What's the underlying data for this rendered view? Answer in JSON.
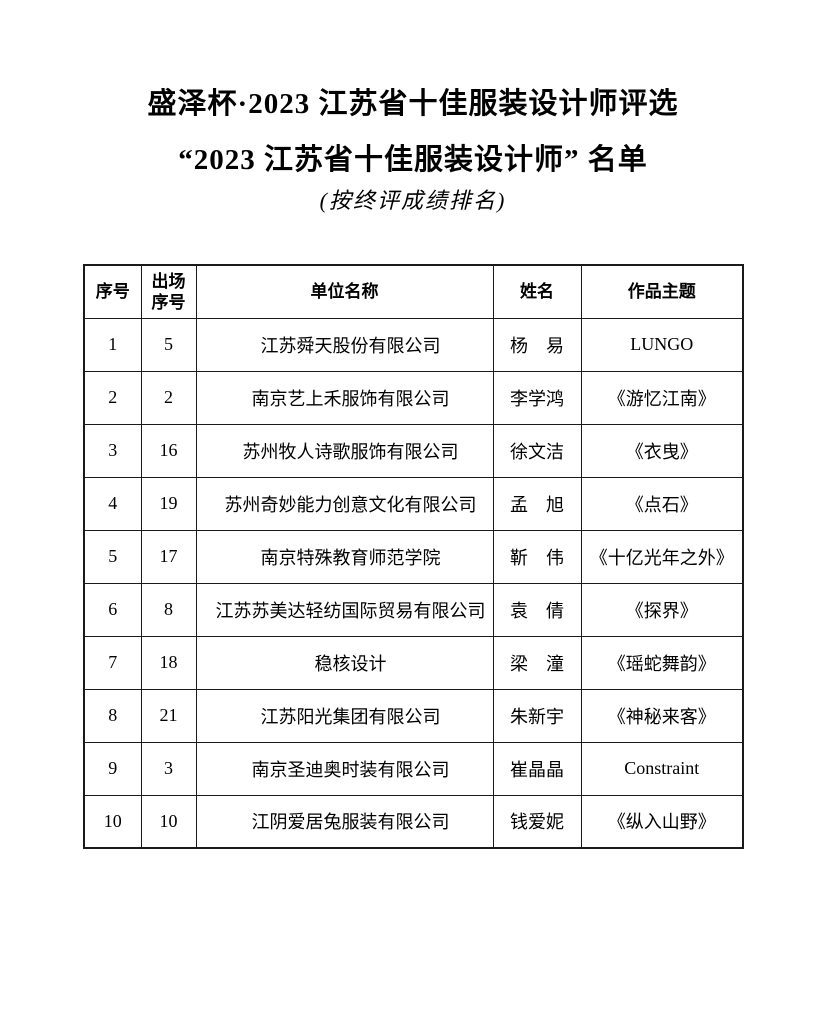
{
  "document": {
    "title_line1": "盛泽杯·2023 江苏省十佳服装设计师评选",
    "title_line2": "“2023 江苏省十佳服装设计师” 名单",
    "subtitle": "(按终评成绩排名)"
  },
  "table": {
    "headers": [
      "序号",
      "出场\n序号",
      "单位名称",
      "姓名",
      "作品主题"
    ],
    "rows": [
      {
        "rank": "1",
        "entry_no": "5",
        "organization": "江苏舜天股份有限公司",
        "designer": "杨　易",
        "work": "LUNGO"
      },
      {
        "rank": "2",
        "entry_no": "2",
        "organization": "南京艺上禾服饰有限公司",
        "designer": "李学鸿",
        "work": "《游忆江南》"
      },
      {
        "rank": "3",
        "entry_no": "16",
        "organization": "苏州牧人诗歌服饰有限公司",
        "designer": "徐文洁",
        "work": "《衣曳》"
      },
      {
        "rank": "4",
        "entry_no": "19",
        "organization": "苏州奇妙能力创意文化有限公司",
        "designer": "孟　旭",
        "work": "《点石》"
      },
      {
        "rank": "5",
        "entry_no": "17",
        "organization": "南京特殊教育师范学院",
        "designer": "靳　伟",
        "work": "《十亿光年之外》"
      },
      {
        "rank": "6",
        "entry_no": "8",
        "organization": "江苏苏美达轻纺国际贸易有限公司",
        "designer": "袁　倩",
        "work": "《探界》"
      },
      {
        "rank": "7",
        "entry_no": "18",
        "organization": "稳核设计",
        "designer": "梁　潼",
        "work": "《瑶蛇舞韵》"
      },
      {
        "rank": "8",
        "entry_no": "21",
        "organization": "江苏阳光集团有限公司",
        "designer": "朱新宇",
        "work": "《神秘来客》"
      },
      {
        "rank": "9",
        "entry_no": "3",
        "organization": "南京圣迪奥时装有限公司",
        "designer": "崔晶晶",
        "work": "Constraint"
      },
      {
        "rank": "10",
        "entry_no": "10",
        "organization": "江阴爱居兔服装有限公司",
        "designer": "钱爱妮",
        "work": "《纵入山野》"
      }
    ]
  }
}
